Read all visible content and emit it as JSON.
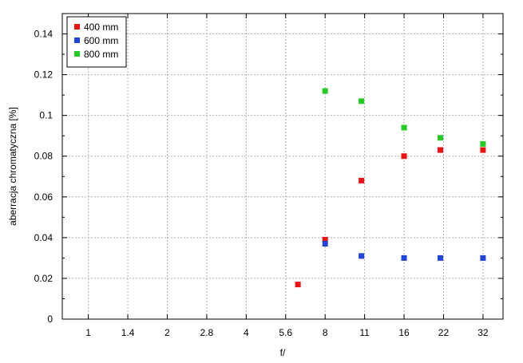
{
  "chart_data": {
    "type": "scatter",
    "title": "",
    "xlabel": "f/",
    "ylabel": "aberracja chromatyczna [%]",
    "x_categories": [
      "1",
      "1.4",
      "2",
      "2.8",
      "4",
      "5.6",
      "8",
      "11",
      "16",
      "22",
      "32"
    ],
    "x_scale": "log2-f-stop",
    "ylim": [
      0,
      0.15
    ],
    "y_ticks": [
      "0",
      "0.02",
      "0.04",
      "0.06",
      "0.08",
      "0.1",
      "0.12",
      "0.14"
    ],
    "grid": true,
    "legend_position": "top-left",
    "series": [
      {
        "name": "400 mm",
        "color": "#ee1111",
        "points": [
          {
            "x": 6.3,
            "y": 0.017
          },
          {
            "x": 8,
            "y": 0.039
          },
          {
            "x": 11,
            "y": 0.068
          },
          {
            "x": 16,
            "y": 0.08
          },
          {
            "x": 22,
            "y": 0.083
          },
          {
            "x": 32,
            "y": 0.083
          }
        ]
      },
      {
        "name": "600 mm",
        "color": "#2244dd",
        "points": [
          {
            "x": 8,
            "y": 0.037
          },
          {
            "x": 11,
            "y": 0.031
          },
          {
            "x": 16,
            "y": 0.03
          },
          {
            "x": 22,
            "y": 0.03
          },
          {
            "x": 32,
            "y": 0.03
          }
        ]
      },
      {
        "name": "800 mm",
        "color": "#22cc22",
        "points": [
          {
            "x": 8,
            "y": 0.112
          },
          {
            "x": 11,
            "y": 0.107
          },
          {
            "x": 16,
            "y": 0.094
          },
          {
            "x": 22,
            "y": 0.089
          },
          {
            "x": 32,
            "y": 0.086
          }
        ]
      }
    ]
  }
}
